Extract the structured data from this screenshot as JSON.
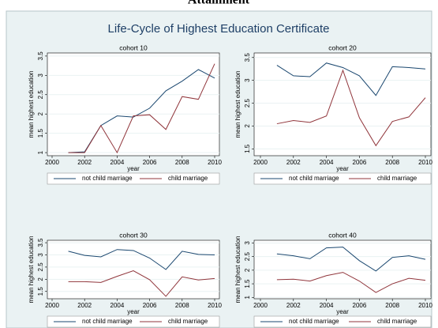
{
  "header": "Attainment",
  "title": "Life-Cycle of Highest Education Certificate",
  "chart_data": [
    {
      "type": "line",
      "title": "cohort 10",
      "x_label": "year",
      "y_label": "mean highest education",
      "x": [
        2001,
        2002,
        2003,
        2004,
        2005,
        2006,
        2007,
        2008,
        2009,
        2010
      ],
      "xlim": [
        2000,
        2010
      ],
      "xticks": [
        2000,
        2002,
        2004,
        2006,
        2008,
        2010
      ],
      "ylim": [
        0.92,
        3.58
      ],
      "yticks": [
        1,
        1.5,
        2,
        2.5,
        3,
        3.5
      ],
      "legend": "bottom",
      "series": [
        {
          "name": "not child marriage",
          "color": "#1a476f",
          "values": [
            1.0,
            1.02,
            1.7,
            1.95,
            1.92,
            2.15,
            2.6,
            2.85,
            3.15,
            2.93
          ]
        },
        {
          "name": "child marriage",
          "color": "#90353b",
          "values": [
            1.0,
            1.0,
            1.7,
            1.0,
            1.95,
            1.98,
            1.6,
            2.45,
            2.38,
            3.3
          ]
        }
      ]
    },
    {
      "type": "line",
      "title": "cohort 20",
      "x_label": "year",
      "y_label": "mean highest education",
      "x": [
        2001,
        2002,
        2003,
        2004,
        2005,
        2006,
        2007,
        2008,
        2009,
        2010
      ],
      "xlim": [
        2000,
        2010
      ],
      "xticks": [
        2000,
        2002,
        2004,
        2006,
        2008,
        2010
      ],
      "ylim": [
        1.35,
        3.6
      ],
      "yticks": [
        1.5,
        2,
        2.5,
        3,
        3.5
      ],
      "legend": "bottom",
      "series": [
        {
          "name": "not child marriage",
          "color": "#1a476f",
          "values": [
            3.33,
            3.1,
            3.08,
            3.38,
            3.28,
            3.1,
            2.67,
            3.3,
            3.28,
            3.25
          ]
        },
        {
          "name": "child marriage",
          "color": "#90353b",
          "values": [
            2.05,
            2.12,
            2.08,
            2.22,
            3.22,
            2.18,
            1.57,
            2.1,
            2.2,
            2.62
          ]
        }
      ]
    },
    {
      "type": "line",
      "title": "cohort 30",
      "x_label": "year",
      "y_label": "mean highest education",
      "x": [
        2001,
        2002,
        2003,
        2004,
        2005,
        2006,
        2007,
        2008,
        2009,
        2010
      ],
      "xlim": [
        2000,
        2010
      ],
      "xticks": [
        2000,
        2002,
        2004,
        2006,
        2008,
        2010
      ],
      "ylim": [
        1.2,
        3.6
      ],
      "yticks": [
        1.5,
        2,
        2.5,
        3,
        3.5
      ],
      "legend": "bottom",
      "series": [
        {
          "name": "not child marriage",
          "color": "#1a476f",
          "values": [
            3.15,
            2.98,
            2.92,
            3.22,
            3.18,
            2.87,
            2.4,
            3.15,
            3.02,
            3.0
          ]
        },
        {
          "name": "child marriage",
          "color": "#90353b",
          "values": [
            1.9,
            1.9,
            1.87,
            2.12,
            2.35,
            1.98,
            1.3,
            2.1,
            1.97,
            2.03
          ]
        }
      ]
    },
    {
      "type": "line",
      "title": "cohort 40",
      "x_label": "year",
      "y_label": "mean highest education",
      "x": [
        2001,
        2002,
        2003,
        2004,
        2005,
        2006,
        2007,
        2008,
        2009,
        2010
      ],
      "xlim": [
        2000,
        2010
      ],
      "xticks": [
        2000,
        2002,
        2004,
        2006,
        2008,
        2010
      ],
      "ylim": [
        0.95,
        3.1
      ],
      "yticks": [
        1,
        1.5,
        2,
        2.5,
        3
      ],
      "legend": "bottom",
      "series": [
        {
          "name": "not child marriage",
          "color": "#1a476f",
          "values": [
            2.6,
            2.53,
            2.42,
            2.82,
            2.85,
            2.35,
            1.97,
            2.47,
            2.53,
            2.4
          ]
        },
        {
          "name": "child marriage",
          "color": "#90353b",
          "values": [
            1.65,
            1.67,
            1.6,
            1.8,
            1.92,
            1.6,
            1.18,
            1.5,
            1.7,
            1.63
          ]
        }
      ]
    }
  ]
}
